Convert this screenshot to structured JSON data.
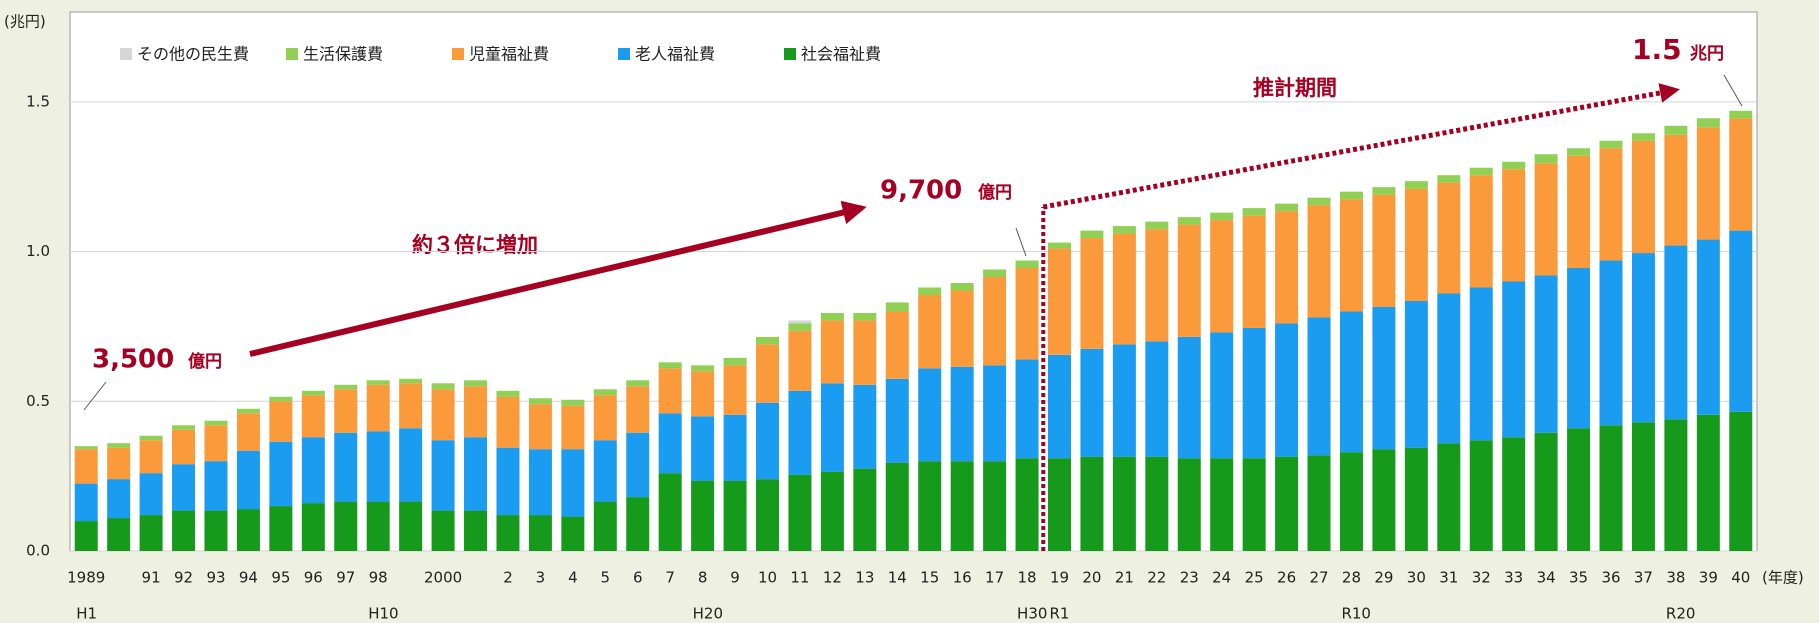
{
  "chart_data": {
    "type": "stacked_bar",
    "y_unit_label": "(兆円)",
    "x_unit_label": "(年度)",
    "categories": [
      "1989",
      null,
      "91",
      "92",
      "93",
      "94",
      "95",
      "96",
      "97",
      "98",
      null,
      "2000",
      null,
      "2",
      "3",
      "4",
      "5",
      "6",
      "7",
      "8",
      "9",
      "10",
      "11",
      "12",
      "13",
      "14",
      "15",
      "16",
      "17",
      "18",
      "19",
      "20",
      "21",
      "22",
      "23",
      "24",
      "25",
      "26",
      "27",
      "28",
      "29",
      "30",
      "31",
      "32",
      "33",
      "34",
      "35",
      "36",
      "37",
      "38",
      "39",
      "40"
    ],
    "era_labels": [
      "H1",
      null,
      null,
      null,
      null,
      null,
      null,
      null,
      null,
      "H10",
      null,
      null,
      null,
      null,
      null,
      null,
      null,
      null,
      null,
      "H20",
      null,
      null,
      null,
      null,
      null,
      null,
      null,
      null,
      null,
      "H30",
      "R1",
      null,
      null,
      null,
      null,
      null,
      null,
      null,
      null,
      "R10",
      null,
      null,
      null,
      null,
      null,
      null,
      null,
      null,
      null,
      "R20",
      null,
      null
    ],
    "series": [
      {
        "name": "社会福祉費",
        "color": "#159a1c",
        "values": [
          0.1,
          0.11,
          0.12,
          0.135,
          0.135,
          0.14,
          0.15,
          0.16,
          0.165,
          0.165,
          0.165,
          0.135,
          0.135,
          0.12,
          0.12,
          0.115,
          0.165,
          0.18,
          0.26,
          0.235,
          0.235,
          0.24,
          0.255,
          0.265,
          0.275,
          0.295,
          0.3,
          0.3,
          0.3,
          0.31,
          0.31,
          0.315,
          0.315,
          0.315,
          0.31,
          0.31,
          0.31,
          0.315,
          0.32,
          0.33,
          0.34,
          0.345,
          0.36,
          0.37,
          0.38,
          0.395,
          0.41,
          0.42,
          0.43,
          0.44,
          0.455,
          0.465
        ]
      },
      {
        "name": "老人福祉費",
        "color": "#1a9cf0",
        "values": [
          0.125,
          0.13,
          0.14,
          0.155,
          0.165,
          0.195,
          0.215,
          0.22,
          0.23,
          0.235,
          0.245,
          0.235,
          0.245,
          0.225,
          0.22,
          0.225,
          0.205,
          0.215,
          0.2,
          0.215,
          0.22,
          0.255,
          0.28,
          0.295,
          0.28,
          0.28,
          0.31,
          0.315,
          0.32,
          0.33,
          0.345,
          0.36,
          0.375,
          0.385,
          0.405,
          0.42,
          0.435,
          0.445,
          0.46,
          0.47,
          0.475,
          0.49,
          0.5,
          0.51,
          0.52,
          0.525,
          0.535,
          0.55,
          0.565,
          0.58,
          0.585,
          0.605
        ]
      },
      {
        "name": "児童福祉費",
        "color": "#fb9a3a",
        "values": [
          0.115,
          0.105,
          0.11,
          0.115,
          0.12,
          0.125,
          0.135,
          0.14,
          0.145,
          0.155,
          0.15,
          0.17,
          0.17,
          0.17,
          0.15,
          0.145,
          0.15,
          0.155,
          0.15,
          0.15,
          0.165,
          0.195,
          0.2,
          0.21,
          0.215,
          0.225,
          0.245,
          0.255,
          0.295,
          0.305,
          0.355,
          0.37,
          0.37,
          0.375,
          0.375,
          0.375,
          0.375,
          0.375,
          0.375,
          0.375,
          0.375,
          0.375,
          0.37,
          0.375,
          0.375,
          0.375,
          0.375,
          0.375,
          0.375,
          0.37,
          0.375,
          0.375
        ]
      },
      {
        "name": "生活保護費",
        "color": "#8fd055",
        "values": [
          0.01,
          0.015,
          0.015,
          0.015,
          0.015,
          0.015,
          0.015,
          0.015,
          0.015,
          0.015,
          0.015,
          0.02,
          0.02,
          0.02,
          0.02,
          0.02,
          0.02,
          0.02,
          0.02,
          0.02,
          0.025,
          0.025,
          0.025,
          0.025,
          0.025,
          0.03,
          0.025,
          0.025,
          0.025,
          0.025,
          0.02,
          0.025,
          0.025,
          0.025,
          0.025,
          0.025,
          0.025,
          0.025,
          0.025,
          0.025,
          0.025,
          0.025,
          0.025,
          0.025,
          0.025,
          0.03,
          0.025,
          0.025,
          0.025,
          0.03,
          0.03,
          0.025
        ]
      },
      {
        "name": "その他の民生費",
        "color": "#d6d6d6",
        "values": [
          0,
          0,
          0,
          0,
          0,
          0,
          0,
          0,
          0,
          0,
          0,
          0,
          0,
          0,
          0,
          0,
          0,
          0,
          0,
          0,
          0,
          0,
          0.01,
          0,
          0,
          0,
          0,
          0,
          0,
          0,
          0,
          0,
          0,
          0,
          0,
          0,
          0,
          0,
          0,
          0,
          0,
          0,
          0,
          0,
          0,
          0,
          0,
          0,
          0,
          0,
          0,
          0
        ]
      }
    ],
    "ylim": [
      0,
      1.8
    ],
    "yticks": [
      {
        "value": 0,
        "label": "0.0"
      },
      0.5,
      {
        "value": 1,
        "label": "1.0"
      },
      1.5
    ],
    "grid": true,
    "legend": "top-left",
    "annotations": {
      "start": {
        "number": "3,500",
        "unit": "億円"
      },
      "mid": {
        "number": "9,700",
        "unit": "億円"
      },
      "end": {
        "number": "1.5",
        "unit": "兆円"
      },
      "growth": "約３倍に増加",
      "forecast": "推計期間"
    }
  }
}
